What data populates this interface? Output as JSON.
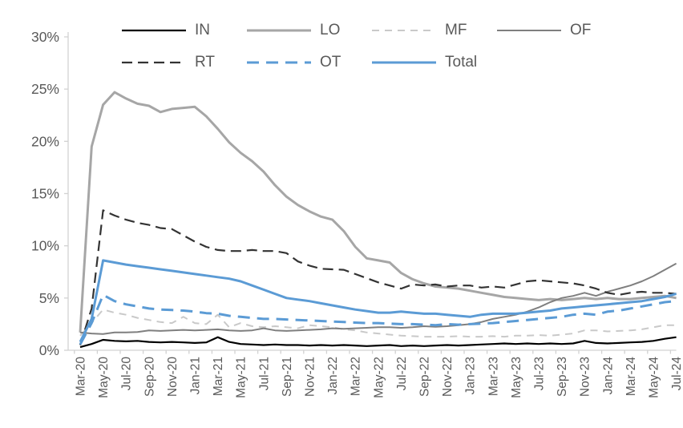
{
  "chart_data": {
    "type": "line",
    "title": "",
    "xlabel": "",
    "ylabel": "",
    "ylim": [
      0,
      30
    ],
    "y_ticks": [
      "0%",
      "5%",
      "10%",
      "15%",
      "20%",
      "25%",
      "30%"
    ],
    "grid": false,
    "legend_position": "top",
    "categories": [
      "Mar-20",
      "Apr-20",
      "May-20",
      "Jun-20",
      "Jul-20",
      "Aug-20",
      "Sep-20",
      "Oct-20",
      "Nov-20",
      "Dec-20",
      "Jan-21",
      "Feb-21",
      "Mar-21",
      "Apr-21",
      "May-21",
      "Jun-21",
      "Jul-21",
      "Aug-21",
      "Sep-21",
      "Oct-21",
      "Nov-21",
      "Dec-21",
      "Jan-22",
      "Feb-22",
      "Mar-22",
      "Apr-22",
      "May-22",
      "Jun-22",
      "Jul-22",
      "Aug-22",
      "Sep-22",
      "Oct-22",
      "Nov-22",
      "Dec-22",
      "Jan-23",
      "Feb-23",
      "Mar-23",
      "Apr-23",
      "May-23",
      "Jun-23",
      "Jul-23",
      "Aug-23",
      "Sep-23",
      "Oct-23",
      "Nov-23",
      "Dec-23",
      "Jan-24",
      "Feb-24",
      "Mar-24",
      "Apr-24",
      "May-24",
      "Jun-24",
      "Jul-24"
    ],
    "x_tick_labels": [
      "Mar-20",
      "May-20",
      "Jul-20",
      "Sep-20",
      "Nov-20",
      "Jan-21",
      "Mar-21",
      "May-21",
      "Jul-21",
      "Sep-21",
      "Nov-21",
      "Jan-22",
      "Mar-22",
      "May-22",
      "Jul-22",
      "Sep-22",
      "Nov-22",
      "Jan-23",
      "Mar-23",
      "May-23",
      "Jul-23",
      "Sep-23",
      "Nov-23",
      "Jan-24",
      "Mar-24",
      "May-24",
      "Jul-24"
    ],
    "series": [
      {
        "name": "IN",
        "color": "#000000",
        "style": "solid",
        "width": 2.2,
        "values": [
          0.3,
          0.6,
          1.0,
          0.9,
          0.85,
          0.9,
          0.8,
          0.75,
          0.8,
          0.75,
          0.7,
          0.75,
          1.25,
          0.8,
          0.6,
          0.55,
          0.5,
          0.55,
          0.5,
          0.5,
          0.45,
          0.5,
          0.45,
          0.5,
          0.45,
          0.4,
          0.45,
          0.5,
          0.4,
          0.45,
          0.4,
          0.45,
          0.5,
          0.45,
          0.5,
          0.55,
          0.6,
          0.65,
          0.6,
          0.65,
          0.6,
          0.65,
          0.6,
          0.65,
          0.9,
          0.7,
          0.65,
          0.7,
          0.75,
          0.8,
          0.9,
          1.1,
          1.25
        ]
      },
      {
        "name": "LO",
        "color": "#A6A6A6",
        "style": "solid",
        "width": 3,
        "values": [
          1.7,
          19.5,
          23.5,
          24.7,
          24.1,
          23.6,
          23.4,
          22.8,
          23.1,
          23.2,
          23.3,
          22.4,
          21.2,
          19.9,
          18.9,
          18.1,
          17.1,
          15.8,
          14.7,
          13.9,
          13.3,
          12.8,
          12.5,
          11.4,
          9.9,
          8.8,
          8.6,
          8.4,
          7.4,
          6.8,
          6.4,
          6.1,
          6.0,
          5.9,
          5.7,
          5.5,
          5.3,
          5.1,
          5.0,
          4.9,
          4.8,
          4.9,
          4.8,
          4.9,
          5.0,
          4.9,
          5.0,
          4.9,
          4.9,
          5.0,
          5.1,
          5.2,
          5.0
        ]
      },
      {
        "name": "MF",
        "color": "#C9C9C9",
        "style": "dashed",
        "width": 2,
        "values": [
          1.4,
          2.6,
          3.9,
          3.6,
          3.4,
          3.1,
          2.9,
          2.7,
          2.6,
          3.2,
          2.6,
          2.5,
          3.4,
          2.2,
          2.6,
          2.3,
          2.2,
          2.3,
          2.2,
          2.1,
          2.4,
          2.3,
          2.2,
          2.0,
          1.9,
          1.7,
          1.6,
          1.5,
          1.4,
          1.35,
          1.3,
          1.3,
          1.3,
          1.35,
          1.3,
          1.3,
          1.35,
          1.3,
          1.4,
          1.4,
          1.45,
          1.4,
          1.5,
          1.6,
          1.9,
          1.9,
          1.8,
          1.85,
          1.9,
          2.0,
          2.2,
          2.4,
          2.4
        ]
      },
      {
        "name": "OF",
        "color": "#7F7F7F",
        "style": "solid",
        "width": 2,
        "values": [
          1.7,
          1.6,
          1.55,
          1.7,
          1.7,
          1.75,
          1.9,
          1.85,
          1.9,
          1.95,
          1.9,
          1.95,
          2.0,
          1.9,
          1.85,
          1.9,
          2.1,
          1.9,
          1.85,
          1.9,
          1.95,
          2.0,
          2.1,
          2.05,
          2.1,
          2.15,
          2.2,
          2.2,
          2.15,
          2.2,
          2.3,
          2.25,
          2.3,
          2.4,
          2.5,
          2.7,
          3.0,
          3.2,
          3.4,
          3.7,
          4.1,
          4.6,
          5.0,
          5.2,
          5.5,
          5.2,
          5.6,
          5.9,
          6.2,
          6.6,
          7.1,
          7.7,
          8.3
        ]
      },
      {
        "name": "RT",
        "color": "#333333",
        "style": "dashed",
        "width": 2.2,
        "values": [
          0.5,
          4.0,
          13.4,
          12.9,
          12.5,
          12.2,
          12.0,
          11.7,
          11.6,
          11.0,
          10.4,
          9.9,
          9.6,
          9.5,
          9.5,
          9.6,
          9.5,
          9.5,
          9.3,
          8.5,
          8.1,
          7.8,
          7.75,
          7.7,
          7.3,
          6.9,
          6.5,
          6.2,
          5.9,
          6.3,
          6.2,
          6.3,
          6.1,
          6.2,
          6.2,
          6.0,
          6.1,
          6.0,
          6.3,
          6.6,
          6.7,
          6.6,
          6.5,
          6.4,
          6.2,
          5.9,
          5.5,
          5.3,
          5.5,
          5.6,
          5.5,
          5.5,
          5.4
        ]
      },
      {
        "name": "OT",
        "color": "#5B9BD5",
        "style": "dashed",
        "width": 3,
        "values": [
          0.55,
          2.6,
          5.3,
          4.7,
          4.4,
          4.2,
          4.0,
          3.9,
          3.85,
          3.8,
          3.7,
          3.55,
          3.5,
          3.3,
          3.2,
          3.1,
          3.0,
          3.0,
          2.95,
          2.9,
          2.85,
          2.8,
          2.75,
          2.7,
          2.65,
          2.6,
          2.6,
          2.55,
          2.5,
          2.5,
          2.45,
          2.4,
          2.5,
          2.45,
          2.5,
          2.55,
          2.6,
          2.7,
          2.8,
          2.9,
          3.0,
          3.1,
          3.2,
          3.4,
          3.5,
          3.4,
          3.7,
          3.8,
          4.0,
          4.2,
          4.4,
          4.6,
          4.7
        ]
      },
      {
        "name": "Total",
        "color": "#5B9BD5",
        "style": "solid",
        "width": 3,
        "values": [
          0.8,
          3.0,
          8.6,
          8.4,
          8.2,
          8.05,
          7.9,
          7.75,
          7.6,
          7.45,
          7.3,
          7.15,
          7.0,
          6.85,
          6.6,
          6.2,
          5.8,
          5.4,
          5.0,
          4.85,
          4.7,
          4.5,
          4.3,
          4.1,
          3.9,
          3.75,
          3.6,
          3.6,
          3.7,
          3.6,
          3.5,
          3.5,
          3.4,
          3.3,
          3.2,
          3.4,
          3.5,
          3.5,
          3.5,
          3.6,
          3.7,
          3.8,
          4.0,
          4.1,
          4.2,
          4.3,
          4.4,
          4.5,
          4.6,
          4.7,
          4.9,
          5.1,
          5.4
        ]
      }
    ]
  },
  "legend": {
    "rows": [
      [
        "IN",
        "LO",
        "MF",
        "OF"
      ],
      [
        "RT",
        "OT",
        "Total"
      ]
    ]
  },
  "colors": {
    "axis": "#D2D2D2",
    "tick_label": "#595959",
    "legend_label": "#595959",
    "accent_blue": "#5B9BD5"
  }
}
